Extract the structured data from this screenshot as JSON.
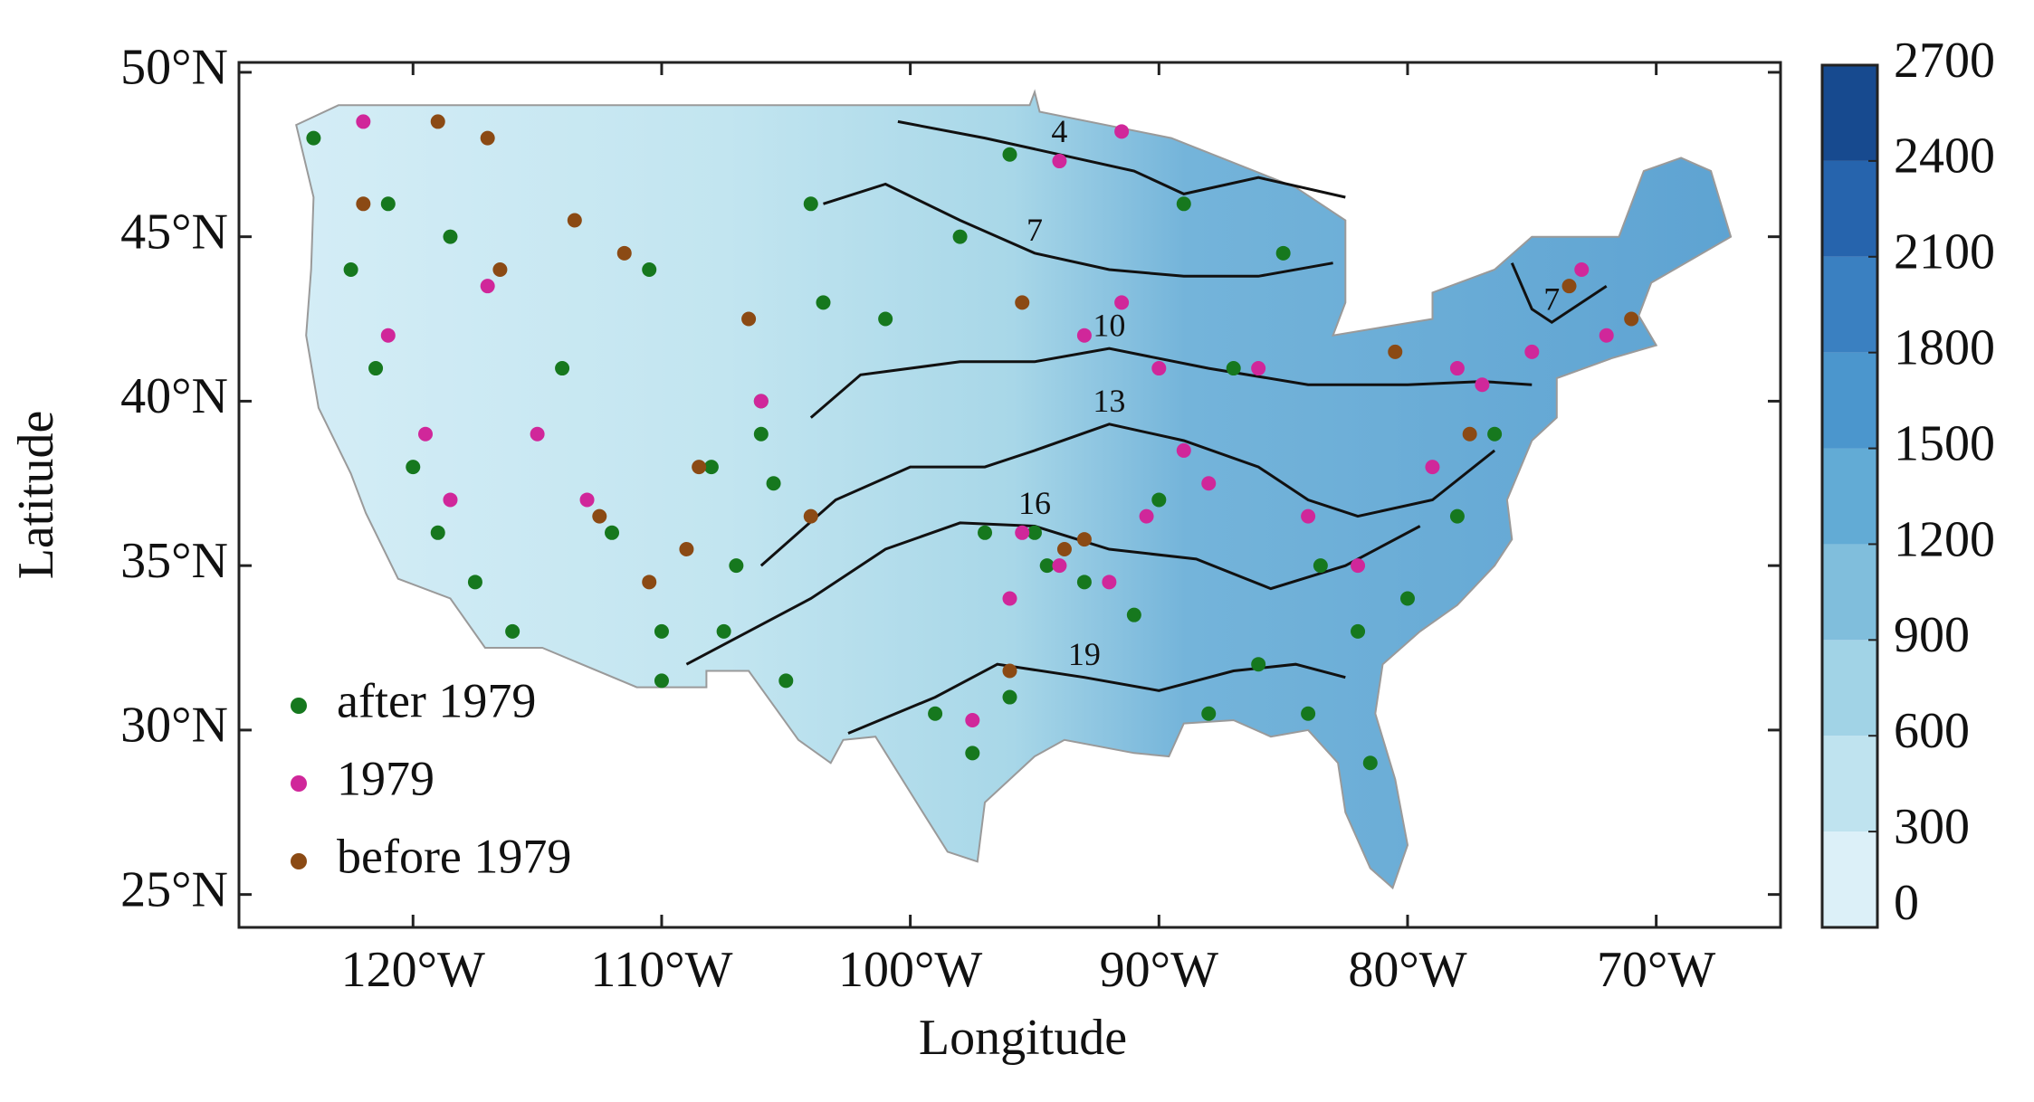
{
  "chart_data": {
    "type": "scatter",
    "xlabel": "Longitude",
    "ylabel": "Latitude",
    "xlim": [
      -127,
      -65
    ],
    "ylim": [
      24,
      50.3
    ],
    "xticks": [
      {
        "value": -120,
        "label": "120°W"
      },
      {
        "value": -110,
        "label": "110°W"
      },
      {
        "value": -100,
        "label": "100°W"
      },
      {
        "value": -90,
        "label": "90°W"
      },
      {
        "value": -80,
        "label": "80°W"
      },
      {
        "value": -70,
        "label": "70°W"
      }
    ],
    "yticks": [
      {
        "value": 25,
        "label": "25°N"
      },
      {
        "value": 30,
        "label": "30°N"
      },
      {
        "value": 35,
        "label": "35°N"
      },
      {
        "value": 40,
        "label": "40°N"
      },
      {
        "value": 45,
        "label": "45°N"
      },
      {
        "value": 50,
        "label": "50°N"
      }
    ],
    "legend": "lower left",
    "colorbar": {
      "lim": [
        0,
        2700
      ],
      "ticks": [
        0,
        300,
        600,
        900,
        1200,
        1500,
        1800,
        2100,
        2400,
        2700
      ],
      "colors": [
        "#dcf0f8",
        "#bfe3ef",
        "#a1d3e6",
        "#80bedc",
        "#62abd5",
        "#4b96cd",
        "#3a80c1",
        "#2664ad",
        "#174a8f",
        "#0e2b5a"
      ]
    },
    "contours": [
      {
        "level": 4,
        "x": [
          -100.5,
          -97,
          -94,
          -91,
          -89,
          -86,
          -82.5
        ],
        "y": [
          48.5,
          48,
          47.5,
          47,
          46.3,
          46.8,
          46.2
        ]
      },
      {
        "level": 7,
        "x": [
          -103.5,
          -101,
          -98,
          -95,
          -92,
          -89,
          -86,
          -83
        ],
        "y": [
          46,
          46.6,
          45.5,
          44.5,
          44,
          43.8,
          43.8,
          44.2
        ]
      },
      {
        "level": 7,
        "x": [
          -75.8,
          -75,
          -74.2,
          -72
        ],
        "y": [
          44.2,
          42.8,
          42.4,
          43.5
        ]
      },
      {
        "level": 10,
        "x": [
          -104,
          -102,
          -98,
          -95,
          -92,
          -88,
          -84,
          -80,
          -77,
          -75
        ],
        "y": [
          39.5,
          40.8,
          41.2,
          41.2,
          41.6,
          41,
          40.5,
          40.5,
          40.6,
          40.5
        ]
      },
      {
        "level": 13,
        "x": [
          -106,
          -103,
          -100,
          -97,
          -95,
          -92,
          -89,
          -86,
          -84,
          -82,
          -79,
          -76.5
        ],
        "y": [
          35,
          37,
          38,
          38,
          38.5,
          39.3,
          38.8,
          38,
          37,
          36.5,
          37,
          38.5
        ]
      },
      {
        "level": 16,
        "x": [
          -109,
          -104,
          -101,
          -98,
          -95,
          -92,
          -88.5,
          -85.5,
          -82.5,
          -79.5
        ],
        "y": [
          32,
          34,
          35.5,
          36.3,
          36.2,
          35.5,
          35.2,
          34.3,
          35,
          36.2
        ]
      },
      {
        "level": 19,
        "x": [
          -102.5,
          -99,
          -96.5,
          -93,
          -90,
          -87,
          -84.5,
          -82.5
        ],
        "y": [
          29.9,
          31,
          32,
          31.6,
          31.2,
          31.8,
          32,
          31.6
        ]
      }
    ],
    "series": [
      {
        "name": "after 1979",
        "color": "#16781e",
        "x": [
          -124,
          -122.5,
          -121.5,
          -120,
          -119,
          -117.5,
          -116,
          -114,
          -112,
          -110.5,
          -110,
          -108,
          -107,
          -106,
          -105.5,
          -106,
          -104,
          -103.5,
          -101,
          -98,
          -96,
          -95,
          -93,
          -91,
          -89,
          -87,
          -85,
          -83.5,
          -82,
          -80,
          -78,
          -76.5,
          -81.5,
          -84,
          -86,
          -88,
          -90,
          -97,
          -96,
          -99,
          -110,
          -107.5,
          -105,
          -118.5,
          -121,
          -97.5,
          -94.5
        ],
        "y": [
          48,
          44,
          41,
          38,
          36,
          34.5,
          33,
          41,
          36,
          44,
          33,
          38,
          35,
          40,
          37.5,
          39,
          46,
          43,
          42.5,
          45,
          47.5,
          36,
          34.5,
          33.5,
          46,
          41,
          44.5,
          35,
          33,
          34,
          36.5,
          39,
          29,
          30.5,
          32,
          30.5,
          37,
          36,
          31,
          30.5,
          31.5,
          33,
          31.5,
          45,
          46,
          29.3,
          35
        ]
      },
      {
        "name": "1979",
        "color": "#d0279a",
        "x": [
          -122,
          -121,
          -119.5,
          -118.5,
          -117,
          -115,
          -113,
          -106,
          -95.5,
          -94,
          -93,
          -91.5,
          -90,
          -89,
          -88,
          -86,
          -84,
          -82,
          -79,
          -78,
          -77,
          -75,
          -73,
          -72,
          -96,
          -94,
          -92,
          -90.5,
          -97.5,
          -91.5
        ],
        "y": [
          48.5,
          42,
          39,
          37,
          43.5,
          39,
          37,
          40,
          36,
          47.3,
          42,
          43,
          41,
          38.5,
          37.5,
          41,
          36.5,
          35,
          38,
          41,
          40.5,
          41.5,
          44,
          42,
          34,
          35,
          34.5,
          36.5,
          30.3,
          48.2
        ]
      },
      {
        "name": "before 1979",
        "color": "#8b4a14",
        "x": [
          -122,
          -119,
          -117,
          -116.5,
          -112.5,
          -110.5,
          -109,
          -108.5,
          -111.5,
          -113.5,
          -106.5,
          -104,
          -95.5,
          -93.8,
          -93,
          -77.5,
          -73.5,
          -71,
          -80.5,
          -96
        ],
        "y": [
          46,
          48.5,
          48,
          44,
          36.5,
          34.5,
          35.5,
          38,
          44.5,
          45.5,
          42.5,
          36.5,
          43,
          35.5,
          35.8,
          39,
          43.5,
          42.5,
          41.5,
          31.8
        ]
      }
    ]
  }
}
